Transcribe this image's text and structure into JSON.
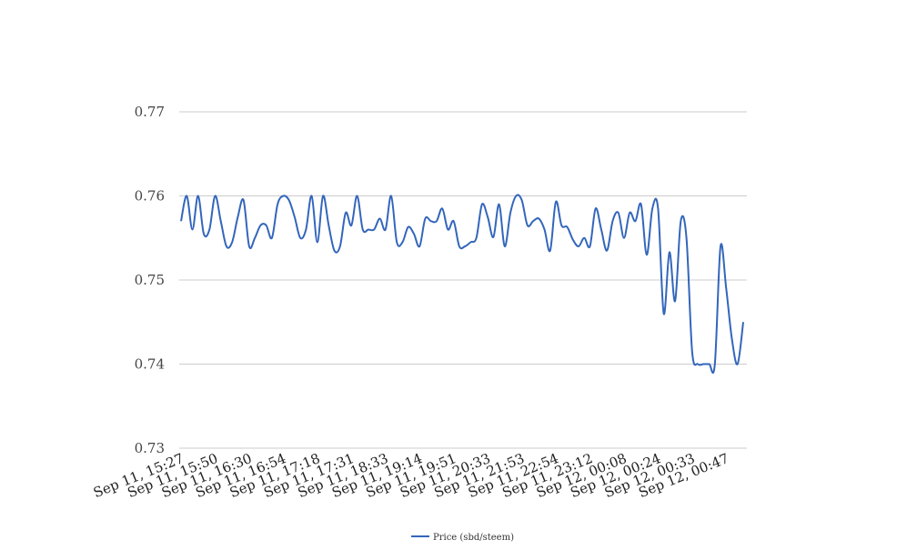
{
  "chart_data": {
    "type": "line",
    "title": "",
    "xlabel": "",
    "ylabel": "",
    "ylim": [
      0.73,
      0.77
    ],
    "yticks": [
      0.73,
      0.74,
      0.75,
      0.76,
      0.77
    ],
    "ytick_labels": [
      "0.73",
      "0.74",
      "0.75",
      "0.76",
      "0.77"
    ],
    "grid": true,
    "legend_position": "bottom-center",
    "xtick_labels": [
      "Sep 11, 15:27",
      "Sep 11, 15:50",
      "Sep 11, 16:30",
      "Sep 11, 16:54",
      "Sep 11, 17:18",
      "Sep 11, 17:31",
      "Sep 11, 18:33",
      "Sep 11, 19:14",
      "Sep 11, 19:51",
      "Sep 11, 20:33",
      "Sep 11, 21:53",
      "Sep 11, 22:54",
      "Sep 11, 23:12",
      "Sep 12, 00:08",
      "Sep 12, 00:24",
      "Sep 12, 00:33",
      "Sep 12, 00:47"
    ],
    "xtick_every": 6,
    "series": [
      {
        "name": "Price (sbd/steem)",
        "color": "#3366bb",
        "values": [
          0.757,
          0.76,
          0.756,
          0.76,
          0.7555,
          0.756,
          0.76,
          0.757,
          0.754,
          0.7545,
          0.7575,
          0.7595,
          0.754,
          0.755,
          0.7565,
          0.7565,
          0.755,
          0.759,
          0.76,
          0.7595,
          0.7575,
          0.755,
          0.756,
          0.76,
          0.7545,
          0.76,
          0.7565,
          0.7535,
          0.754,
          0.758,
          0.7565,
          0.76,
          0.756,
          0.756,
          0.756,
          0.7573,
          0.756,
          0.76,
          0.7545,
          0.7545,
          0.7563,
          0.7555,
          0.754,
          0.7573,
          0.757,
          0.757,
          0.7585,
          0.756,
          0.757,
          0.754,
          0.754,
          0.7545,
          0.755,
          0.759,
          0.7575,
          0.7551,
          0.759,
          0.754,
          0.758,
          0.76,
          0.7595,
          0.7565,
          0.757,
          0.7573,
          0.756,
          0.7535,
          0.7593,
          0.7565,
          0.7563,
          0.7548,
          0.754,
          0.755,
          0.754,
          0.7585,
          0.756,
          0.7535,
          0.757,
          0.758,
          0.755,
          0.758,
          0.757,
          0.759,
          0.753,
          0.7585,
          0.7585,
          0.746,
          0.7533,
          0.7475,
          0.757,
          0.755,
          0.7415,
          0.74,
          0.74,
          0.74,
          0.74,
          0.754,
          0.749,
          0.743,
          0.74,
          0.745
        ]
      }
    ]
  }
}
